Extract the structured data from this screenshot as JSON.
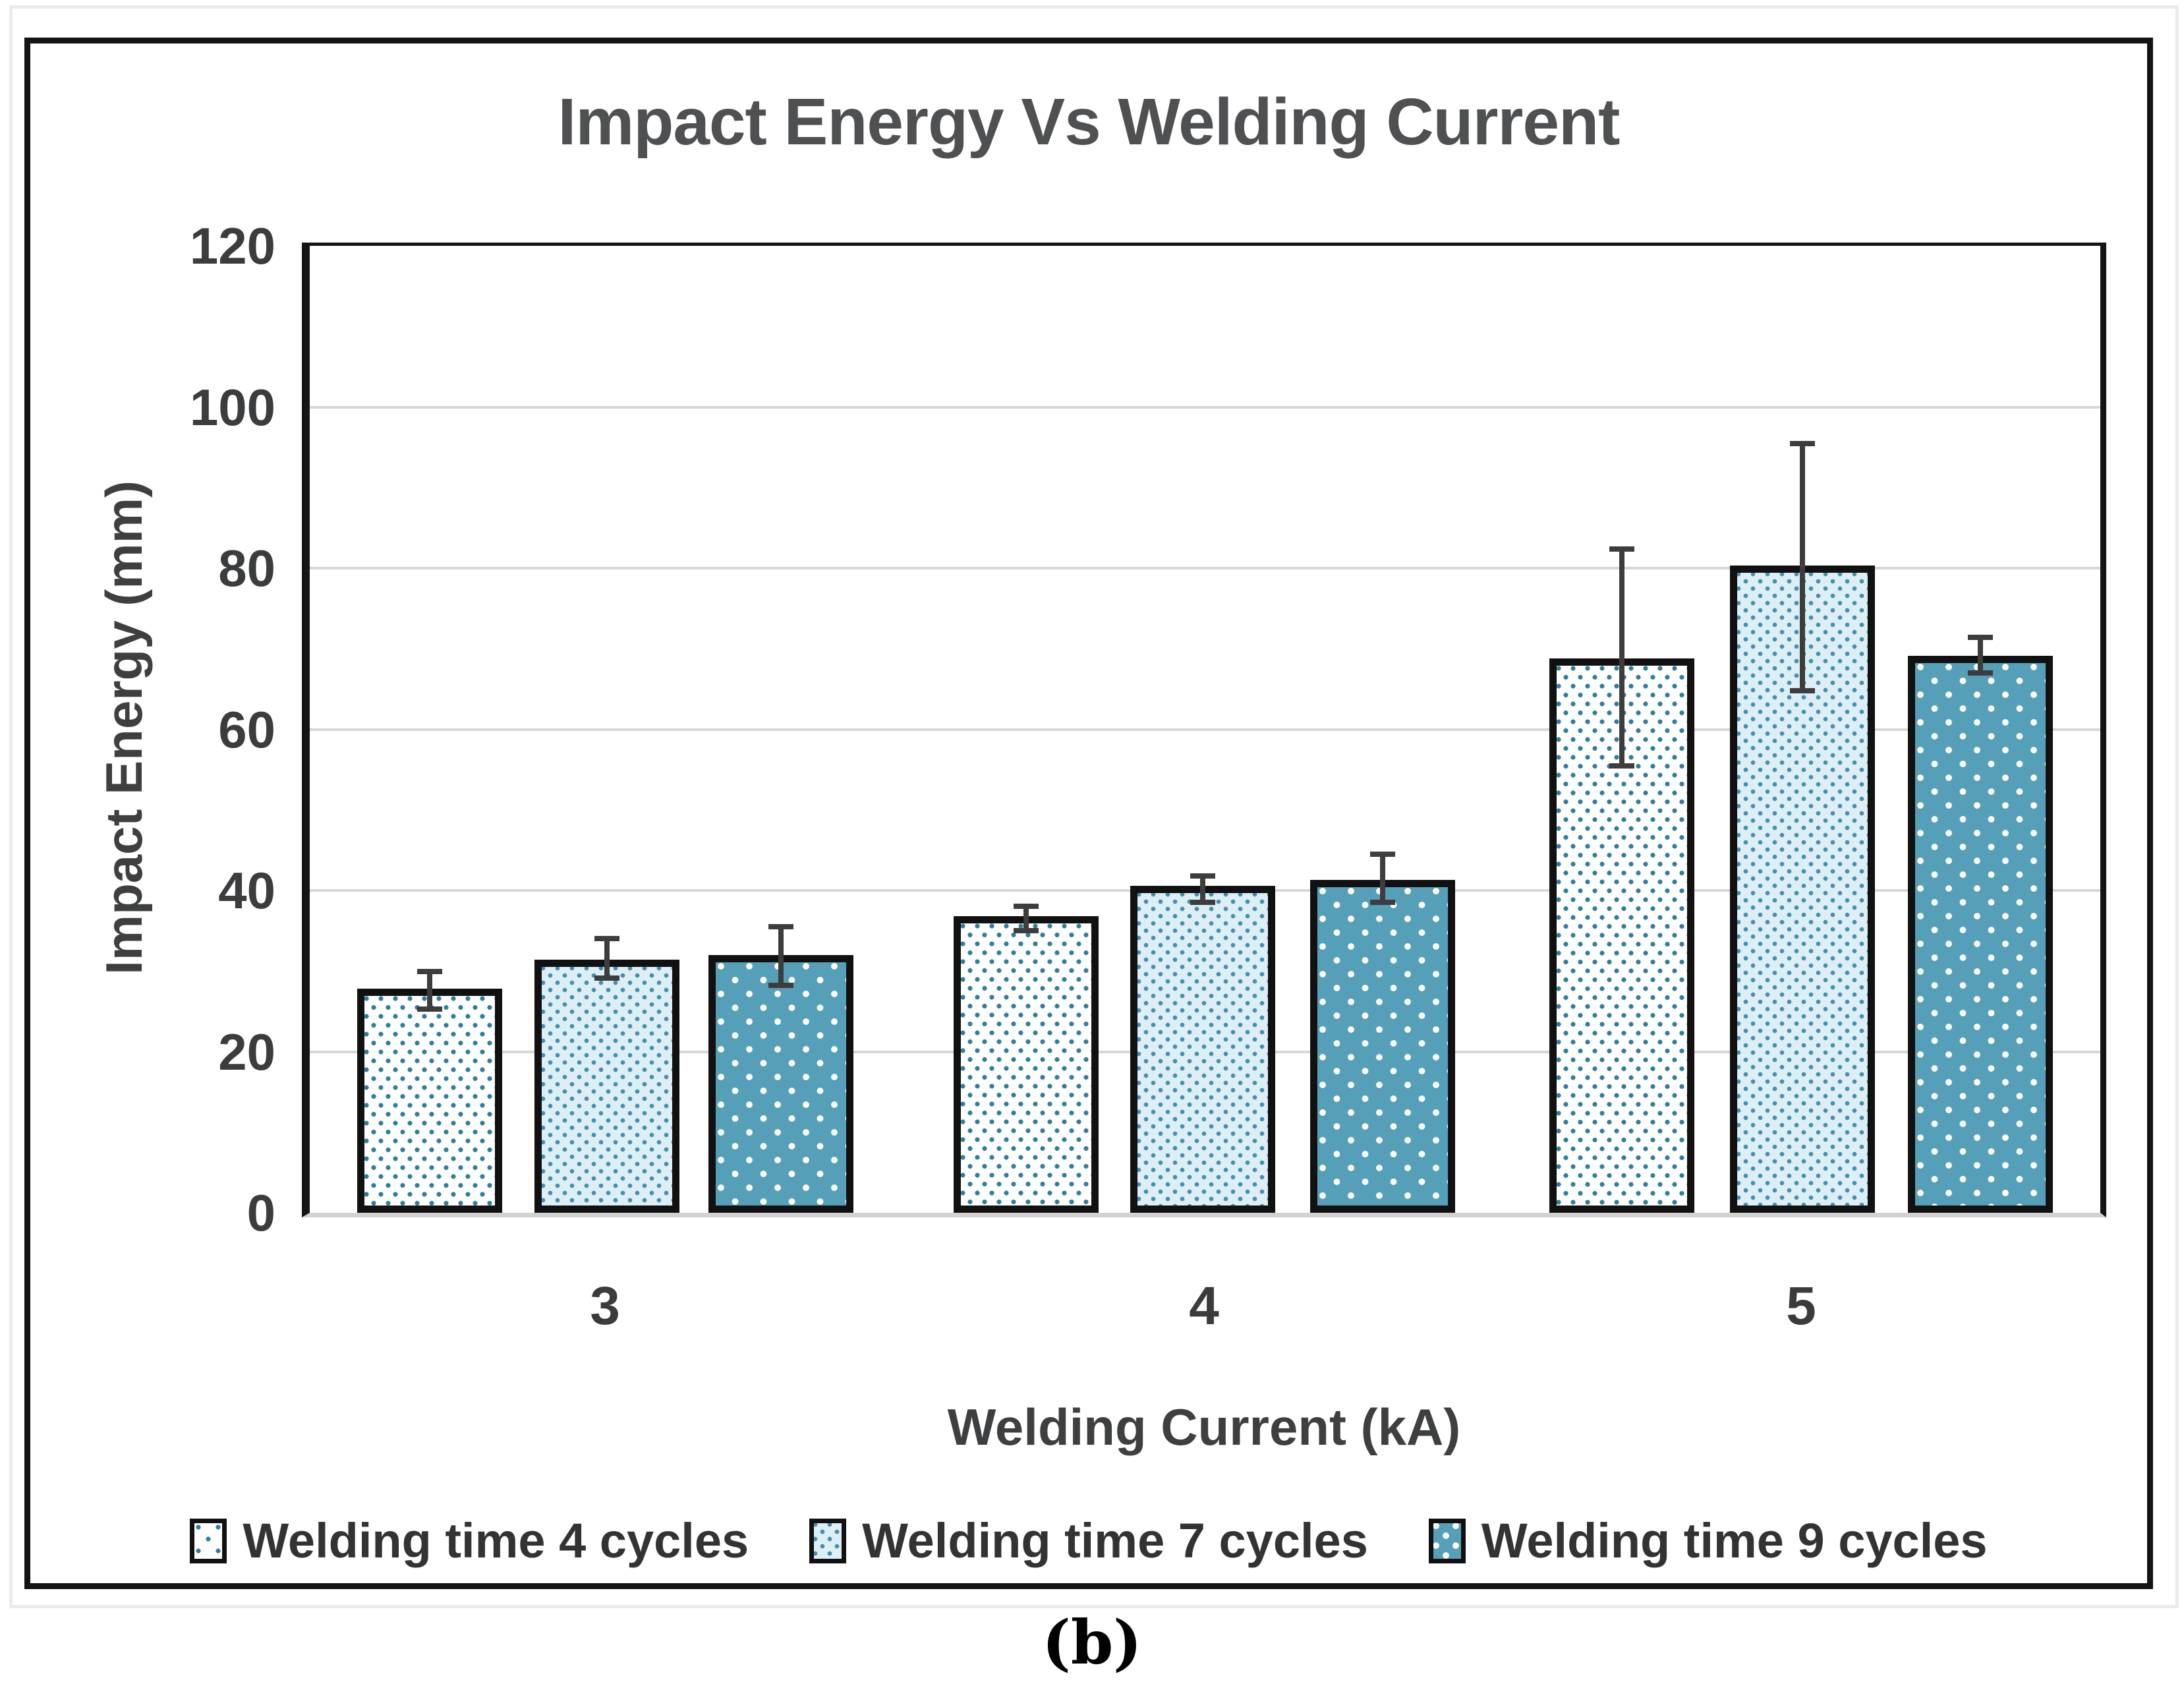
{
  "figure": {
    "title": "Impact Energy Vs Welding Current",
    "caption": "(b)"
  },
  "chart_data": {
    "type": "bar",
    "title": "Impact Energy Vs Welding Current",
    "xlabel": "Welding Current (kA)",
    "ylabel": "Impact Energy (mm)",
    "categories": [
      "3",
      "4",
      "5"
    ],
    "ylim": [
      0,
      120
    ],
    "yticks": [
      0,
      20,
      40,
      60,
      80,
      100,
      120
    ],
    "grid": "horizontal",
    "legend_position": "bottom",
    "error_bars": true,
    "series": [
      {
        "name": "Welding time 4 cycles",
        "values": [
          27.8,
          36.8,
          68.8
        ],
        "err_low": [
          25.3,
          35.0,
          55.5
        ],
        "err_high": [
          29.9,
          38.0,
          82.4
        ],
        "pattern": "sparse-teal-dots-on-white",
        "dot_color": "#2e7f9e",
        "fill_color": "#ffffff"
      },
      {
        "name": "Welding time 7 cycles",
        "values": [
          31.4,
          40.6,
          80.3
        ],
        "err_low": [
          29.1,
          38.5,
          64.8
        ],
        "err_high": [
          34.0,
          41.8,
          95.5
        ],
        "pattern": "dense-teal-dot-grid-on-lightblue",
        "dot_color": "#4191af",
        "fill_color": "#ddeef5"
      },
      {
        "name": "Welding time 9 cycles",
        "values": [
          32.0,
          41.3,
          69.1
        ],
        "err_low": [
          28.2,
          38.5,
          67.0
        ],
        "err_high": [
          35.5,
          44.5,
          71.4
        ],
        "pattern": "white-dots-on-teal",
        "dot_color": "#ffffff",
        "fill_color": "#55a0b8"
      }
    ],
    "colors": {
      "bar_outline": "#111111",
      "error_bar": "#3d3d3d",
      "gridline": "#d6d6d6",
      "axis_line": "#151515",
      "baseline": "#d2d2d2",
      "title_text": "#4f5052",
      "tick_text": "#3b3c3e"
    }
  }
}
